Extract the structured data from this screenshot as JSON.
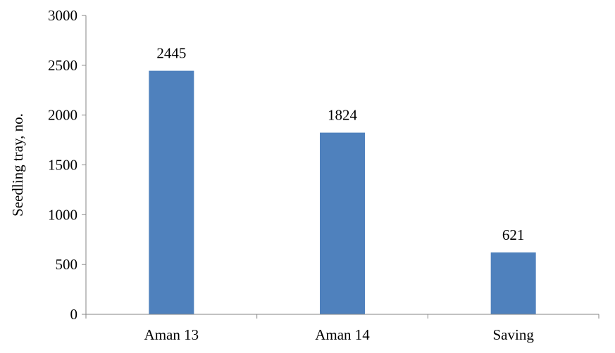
{
  "chart_data": {
    "type": "bar",
    "categories": [
      "Aman 13",
      "Aman 14",
      "Saving"
    ],
    "values": [
      2445,
      1824,
      621
    ],
    "data_labels": [
      "2445",
      "1824",
      "621"
    ],
    "title": "",
    "xlabel": "",
    "ylabel": "Seedling tray, no.",
    "ylim": [
      0,
      3000
    ],
    "yticks": [
      0,
      500,
      1000,
      1500,
      2000,
      2500,
      3000
    ],
    "grid": false,
    "legend": "none",
    "colors": {
      "bar": "#4F81BD",
      "axis": "#868686",
      "text": "#000000"
    }
  }
}
